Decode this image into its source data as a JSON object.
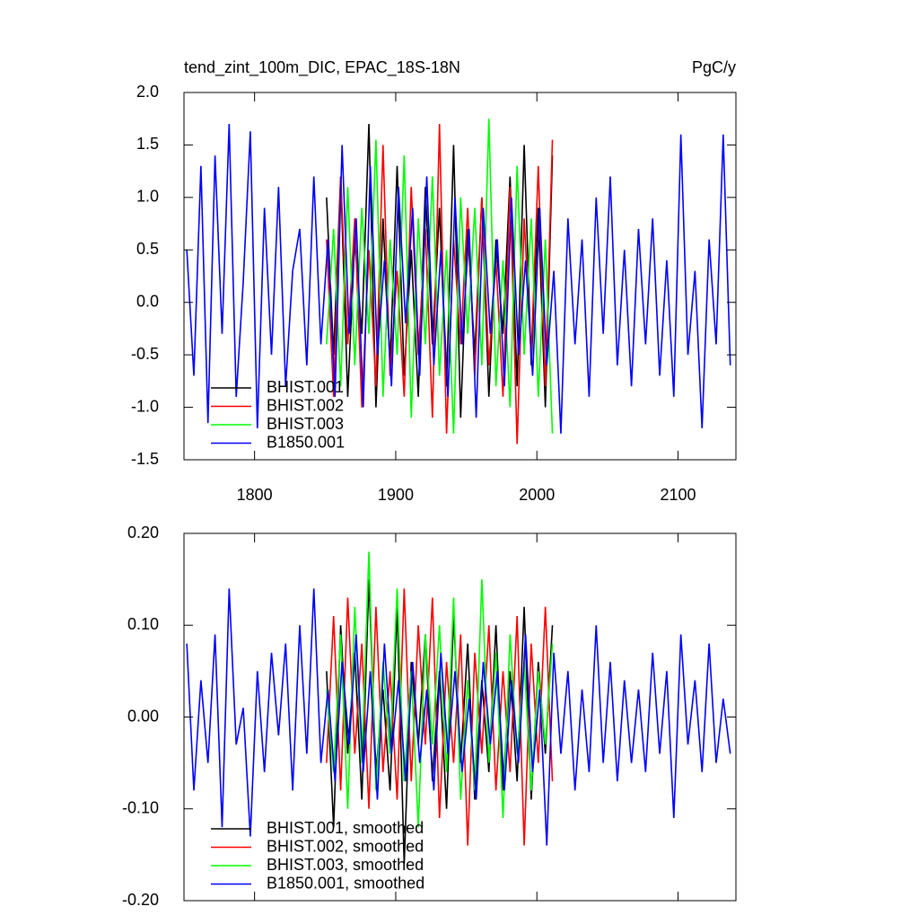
{
  "chart_data": [
    {
      "type": "line",
      "title": "tend_zint_100m_DIC, EPAC_18S-18N",
      "units": "PgC/y",
      "xlim": [
        1750,
        2141
      ],
      "xticks": [
        1800,
        1900,
        2000,
        2100
      ],
      "ylim": [
        -1.5,
        2.0
      ],
      "yticks": [
        {
          "value": -1.5,
          "label": "-1.5"
        },
        {
          "value": -1.0,
          "label": "-1.0"
        },
        {
          "value": -0.5,
          "label": "-0.5"
        },
        {
          "value": 0,
          "label": "0.0"
        },
        {
          "value": 0.5,
          "label": "0.5"
        },
        {
          "value": 1.0,
          "label": "1.0"
        },
        {
          "value": 1.5,
          "label": "1.5"
        },
        {
          "value": 2.0,
          "label": "2.0"
        }
      ],
      "legend": "lower-left",
      "series": [
        {
          "name": "BHIST.001",
          "color": "#000000",
          "x": [
            1851,
            1856,
            1861,
            1866,
            1871,
            1876,
            1881,
            1886,
            1891,
            1896,
            1901,
            1906,
            1911,
            1916,
            1921,
            1926,
            1931,
            1936,
            1941,
            1946,
            1951,
            1956,
            1961,
            1966,
            1971,
            1976,
            1981,
            1986,
            1991,
            1996,
            2001,
            2006,
            2011
          ],
          "values": [
            1.0,
            -0.5,
            1.2,
            -0.9,
            0.6,
            -0.3,
            1.7,
            -1.0,
            0.8,
            -0.6,
            1.3,
            -0.7,
            0.5,
            -0.9,
            1.1,
            -0.4,
            0.9,
            -0.8,
            1.5,
            -1.1,
            0.7,
            -0.5,
            1.0,
            -0.9,
            0.6,
            -0.3,
            1.2,
            -0.8,
            1.5,
            -0.6,
            0.9,
            -1.0,
            1.4
          ]
        },
        {
          "name": "BHIST.002",
          "color": "#ff0000",
          "x": [
            1851,
            1856,
            1861,
            1866,
            1871,
            1876,
            1881,
            1886,
            1891,
            1896,
            1901,
            1906,
            1911,
            1916,
            1921,
            1926,
            1931,
            1936,
            1941,
            1946,
            1951,
            1956,
            1961,
            1966,
            1971,
            1976,
            1981,
            1986,
            1991,
            1996,
            2001,
            2006,
            2011
          ],
          "values": [
            0.6,
            -0.9,
            1.2,
            -0.4,
            0.8,
            -1.0,
            0.5,
            -0.8,
            1.5,
            -0.7,
            0.3,
            -0.9,
            1.1,
            -0.5,
            0.7,
            -1.1,
            1.7,
            -1.25,
            0.6,
            -0.4,
            0.9,
            -0.7,
            1.0,
            -0.6,
            0.4,
            -0.9,
            1.1,
            -1.35,
            0.8,
            -0.5,
            1.3,
            -0.8,
            1.55
          ]
        },
        {
          "name": "BHIST.003",
          "color": "#00ff00",
          "x": [
            1851,
            1856,
            1861,
            1866,
            1871,
            1876,
            1881,
            1886,
            1891,
            1896,
            1901,
            1906,
            1911,
            1916,
            1921,
            1926,
            1931,
            1936,
            1941,
            1946,
            1951,
            1956,
            1961,
            1966,
            1971,
            1976,
            1981,
            1986,
            1991,
            1996,
            2001,
            2006,
            2011
          ],
          "values": [
            -0.4,
            0.7,
            -0.8,
            1.1,
            -0.6,
            0.9,
            -0.3,
            1.55,
            -0.9,
            0.6,
            -0.5,
            1.4,
            -1.1,
            0.8,
            -0.4,
            1.2,
            -0.7,
            0.5,
            -1.25,
            1.0,
            -0.3,
            0.9,
            -0.6,
            1.75,
            -0.8,
            0.4,
            -1.0,
            1.3,
            -0.5,
            0.8,
            -0.9,
            0.6,
            -1.25
          ]
        },
        {
          "name": "B1850.001",
          "color": "#0000ff",
          "x": [
            1752,
            1757,
            1762,
            1767,
            1772,
            1777,
            1782,
            1787,
            1792,
            1797,
            1802,
            1807,
            1812,
            1817,
            1822,
            1827,
            1832,
            1837,
            1842,
            1847,
            1852,
            1857,
            1862,
            1867,
            1872,
            1877,
            1882,
            1887,
            1892,
            1897,
            1902,
            1907,
            1912,
            1917,
            1922,
            1927,
            1932,
            1937,
            1942,
            1947,
            1952,
            1957,
            1962,
            1967,
            1972,
            1977,
            1982,
            1987,
            1992,
            1997,
            2002,
            2007,
            2012,
            2017,
            2022,
            2027,
            2032,
            2037,
            2042,
            2047,
            2052,
            2057,
            2062,
            2067,
            2072,
            2077,
            2082,
            2087,
            2092,
            2097,
            2102,
            2107,
            2112,
            2117,
            2122,
            2127,
            2132,
            2137
          ],
          "values": [
            0.5,
            -0.7,
            1.3,
            -1.15,
            1.4,
            -0.3,
            1.7,
            -0.9,
            0.2,
            1.63,
            -1.2,
            0.9,
            -0.5,
            1.1,
            -0.8,
            0.3,
            0.7,
            -0.6,
            1.2,
            -0.4,
            0.6,
            -0.9,
            1.5,
            -0.3,
            0.8,
            -1.0,
            1.3,
            -0.5,
            0.4,
            -0.8,
            1.1,
            -0.2,
            0.9,
            -0.7,
            1.2,
            -0.6,
            0.5,
            -0.9,
            1.0,
            -0.4,
            0.7,
            -1.1,
            0.9,
            -0.3,
            0.6,
            -0.8,
            1.0,
            -0.5,
            0.4,
            -0.7,
            0.9,
            -0.6,
            0.3,
            -1.25,
            0.8,
            -0.4,
            0.6,
            -0.9,
            1.0,
            -0.3,
            1.2,
            -0.6,
            0.5,
            -0.8,
            0.7,
            -0.4,
            0.8,
            -0.7,
            0.4,
            -0.9,
            1.6,
            -0.5,
            0.3,
            -1.2,
            0.6,
            -0.4,
            1.6,
            -0.6
          ]
        }
      ]
    },
    {
      "type": "line",
      "xlim": [
        1750,
        2141
      ],
      "xticks": [
        1800,
        1900,
        2000,
        2100
      ],
      "ylim": [
        -0.2,
        0.2
      ],
      "yticks": [
        {
          "value": -0.2,
          "label": "-0.20"
        },
        {
          "value": -0.1,
          "label": "-0.10"
        },
        {
          "value": 0,
          "label": "0.00"
        },
        {
          "value": 0.1,
          "label": "0.10"
        },
        {
          "value": 0.2,
          "label": "0.20"
        }
      ],
      "legend": "lower-left",
      "series": [
        {
          "name": "BHIST.001, smoothed",
          "color": "#000000",
          "x": [
            1851,
            1856,
            1861,
            1866,
            1871,
            1876,
            1881,
            1886,
            1891,
            1896,
            1901,
            1906,
            1911,
            1916,
            1921,
            1926,
            1931,
            1936,
            1941,
            1946,
            1951,
            1956,
            1961,
            1966,
            1971,
            1976,
            1981,
            1986,
            1991,
            1996,
            2001,
            2006,
            2011
          ],
          "values": [
            0.05,
            -0.12,
            0.1,
            -0.04,
            0.07,
            -0.09,
            0.15,
            -0.06,
            0.03,
            -0.08,
            0.12,
            -0.16,
            0.06,
            -0.03,
            0.09,
            -0.07,
            0.05,
            -0.1,
            0.11,
            -0.05,
            0.08,
            -0.09,
            0.04,
            -0.06,
            0.1,
            -0.08,
            0.05,
            -0.07,
            0.12,
            -0.09,
            0.06,
            -0.04,
            0.1
          ]
        },
        {
          "name": "BHIST.002, smoothed",
          "color": "#ff0000",
          "x": [
            1851,
            1856,
            1861,
            1866,
            1871,
            1876,
            1881,
            1886,
            1891,
            1896,
            1901,
            1906,
            1911,
            1916,
            1921,
            1926,
            1931,
            1936,
            1941,
            1946,
            1951,
            1956,
            1961,
            1966,
            1971,
            1976,
            1981,
            1986,
            1991,
            1996,
            2001,
            2006,
            2011
          ],
          "values": [
            -0.05,
            0.11,
            -0.08,
            0.13,
            -0.04,
            0.08,
            -0.1,
            0.12,
            -0.06,
            0.05,
            -0.09,
            0.14,
            -0.07,
            0.1,
            -0.03,
            0.13,
            -0.11,
            0.06,
            -0.05,
            0.09,
            -0.14,
            0.07,
            -0.04,
            0.1,
            -0.08,
            0.05,
            -0.06,
            0.11,
            -0.14,
            0.08,
            -0.05,
            0.12,
            -0.07
          ]
        },
        {
          "name": "BHIST.003, smoothed",
          "color": "#00ff00",
          "x": [
            1851,
            1856,
            1861,
            1866,
            1871,
            1876,
            1881,
            1886,
            1891,
            1896,
            1901,
            1906,
            1911,
            1916,
            1921,
            1926,
            1931,
            1936,
            1941,
            1946,
            1951,
            1956,
            1961,
            1966,
            1971,
            1976,
            1981,
            1986,
            1991,
            1996,
            2001,
            2006,
            2011
          ],
          "values": [
            0.03,
            -0.06,
            0.09,
            -0.1,
            0.12,
            -0.05,
            0.18,
            -0.08,
            0.06,
            -0.04,
            0.14,
            -0.07,
            0.05,
            -0.12,
            0.09,
            -0.03,
            0.1,
            -0.06,
            0.13,
            -0.09,
            0.04,
            -0.08,
            0.15,
            -0.05,
            0.07,
            -0.11,
            0.09,
            -0.04,
            0.06,
            -0.08,
            0.05,
            -0.03,
            0.08
          ]
        },
        {
          "name": "B1850.001, smoothed",
          "color": "#0000ff",
          "x": [
            1752,
            1757,
            1762,
            1767,
            1772,
            1777,
            1782,
            1787,
            1792,
            1797,
            1802,
            1807,
            1812,
            1817,
            1822,
            1827,
            1832,
            1837,
            1842,
            1847,
            1852,
            1857,
            1862,
            1867,
            1872,
            1877,
            1882,
            1887,
            1892,
            1897,
            1902,
            1907,
            1912,
            1917,
            1922,
            1927,
            1932,
            1937,
            1942,
            1947,
            1952,
            1957,
            1962,
            1967,
            1972,
            1977,
            1982,
            1987,
            1992,
            1997,
            2002,
            2007,
            2012,
            2017,
            2022,
            2027,
            2032,
            2037,
            2042,
            2047,
            2052,
            2057,
            2062,
            2067,
            2072,
            2077,
            2082,
            2087,
            2092,
            2097,
            2102,
            2107,
            2112,
            2117,
            2122,
            2127,
            2132,
            2137
          ],
          "values": [
            0.08,
            -0.08,
            0.04,
            -0.05,
            0.09,
            -0.12,
            0.14,
            -0.03,
            0.01,
            -0.13,
            0.05,
            -0.06,
            0.07,
            -0.02,
            0.08,
            -0.08,
            0.1,
            -0.04,
            0.14,
            -0.05,
            0.03,
            -0.07,
            0.06,
            -0.03,
            0.09,
            -0.06,
            0.05,
            -0.09,
            0.08,
            -0.04,
            0.04,
            -0.07,
            0.06,
            -0.05,
            0.03,
            -0.08,
            0.07,
            -0.04,
            0.05,
            -0.06,
            0.02,
            -0.09,
            0.06,
            -0.03,
            0.05,
            -0.08,
            0.04,
            -0.05,
            0.09,
            -0.06,
            0.03,
            -0.14,
            0.07,
            -0.04,
            0.05,
            -0.08,
            0.03,
            -0.06,
            0.1,
            -0.05,
            0.06,
            -0.07,
            0.04,
            -0.05,
            0.03,
            -0.06,
            0.07,
            -0.04,
            0.05,
            -0.11,
            0.09,
            -0.03,
            0.04,
            -0.06,
            0.08,
            -0.05,
            0.02,
            -0.04
          ]
        }
      ]
    }
  ]
}
